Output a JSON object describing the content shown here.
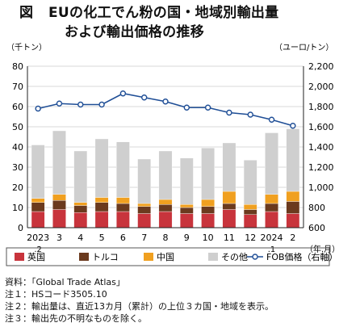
{
  "title": {
    "label": "図",
    "line1": "EUの化工でん粉の国・地域別輸出量",
    "line2": "および輸出価格の推移"
  },
  "chart_data": {
    "type": "bar",
    "categories": [
      "2023.2",
      "3",
      "4",
      "5",
      "6",
      "7",
      "8",
      "9",
      "10",
      "11",
      "12",
      "2024.1",
      "2"
    ],
    "x_labels_top": [
      "2023",
      "3",
      "4",
      "5",
      "6",
      "7",
      "8",
      "9",
      "10",
      "11",
      "12",
      "2024",
      "2"
    ],
    "x_labels_bottom": [
      ".2",
      "",
      "",
      "",
      "",
      "",
      "",
      "",
      "",
      "",
      "",
      ".1",
      ""
    ],
    "x_unit": "（年.月）",
    "y_left_unit": "（千トン）",
    "y_right_unit": "（ユーロ/トン）",
    "y_left_lim": [
      0,
      80
    ],
    "y_left_ticks": [
      0,
      10,
      20,
      30,
      40,
      50,
      60,
      70,
      80
    ],
    "y_right_lim": [
      600,
      2200
    ],
    "y_right_ticks": [
      600,
      800,
      1000,
      1200,
      1400,
      1600,
      1800,
      2000,
      2200
    ],
    "y_right_tick_labels": [
      "600",
      "800",
      "1,000",
      "1,200",
      "1,400",
      "1,600",
      "1,800",
      "2,000",
      "2,200"
    ],
    "stacked": true,
    "series": [
      {
        "name": "英国",
        "color": "#c8343c",
        "values": [
          8,
          9,
          7.5,
          8,
          8,
          7,
          8,
          7,
          7,
          9,
          6.5,
          8,
          7
        ]
      },
      {
        "name": "トルコ",
        "color": "#6b3a1e",
        "values": [
          4.5,
          4.5,
          3.5,
          4.5,
          4,
          3.5,
          3.5,
          3,
          3.5,
          3,
          2.5,
          4,
          6
        ]
      },
      {
        "name": "中国",
        "color": "#f0a020",
        "values": [
          2,
          3,
          1.5,
          2.5,
          3,
          1.5,
          2.5,
          1.5,
          3.5,
          6,
          2.5,
          4.5,
          5
        ]
      },
      {
        "name": "その他",
        "color": "#cfcfcf",
        "values": [
          26.5,
          31.5,
          25.5,
          29,
          27.5,
          22,
          24,
          23,
          25.5,
          24,
          22,
          30.5,
          31
        ]
      }
    ],
    "line_series": {
      "name": "FOB価格（右軸）",
      "color": "#1f4e96",
      "axis": "right",
      "values": [
        1780,
        1830,
        1820,
        1820,
        1930,
        1890,
        1850,
        1790,
        1790,
        1740,
        1720,
        1670,
        1610
      ]
    },
    "grid": "horizontal",
    "legend_position": "bottom"
  },
  "notes": [
    "資料：「Global Trade Atlas」",
    "注１：HSコード3505.10",
    "注２：輸出量は、直近13カ月（累計）の上位３カ国・地域を表示。",
    "注３：輸出先の不明なものを除く。"
  ]
}
